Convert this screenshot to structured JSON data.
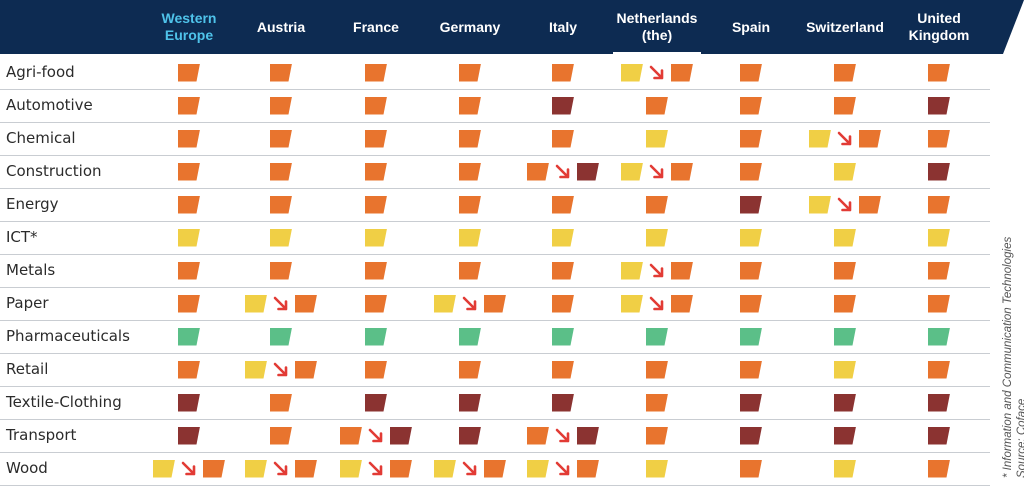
{
  "colors": {
    "header_bg": "#0d2b52",
    "highlight_text": "#4fc3ea",
    "low": "#5bbf88",
    "medium": "#f0cf45",
    "high": "#e8742e",
    "very_high": "#8b3331",
    "downgrade_arrow": "#e23b35"
  },
  "columns": [
    {
      "label": "Western\nEurope"
    },
    {
      "label": "Austria"
    },
    {
      "label": "France"
    },
    {
      "label": "Germany"
    },
    {
      "label": "Italy"
    },
    {
      "label": "Netherlands\n(the)"
    },
    {
      "label": "Spain"
    },
    {
      "label": "Switzerland"
    },
    {
      "label": "United\nKingdom"
    }
  ],
  "rows": [
    {
      "sector": "Agri-food",
      "cells": [
        [
          "high"
        ],
        [
          "high"
        ],
        [
          "high"
        ],
        [
          "high"
        ],
        [
          "high"
        ],
        [
          "medium",
          "high"
        ],
        [
          "high"
        ],
        [
          "high"
        ],
        [
          "high"
        ]
      ]
    },
    {
      "sector": "Automotive",
      "cells": [
        [
          "high"
        ],
        [
          "high"
        ],
        [
          "high"
        ],
        [
          "high"
        ],
        [
          "very_high"
        ],
        [
          "high"
        ],
        [
          "high"
        ],
        [
          "high"
        ],
        [
          "very_high"
        ]
      ]
    },
    {
      "sector": "Chemical",
      "cells": [
        [
          "high"
        ],
        [
          "high"
        ],
        [
          "high"
        ],
        [
          "high"
        ],
        [
          "high"
        ],
        [
          "medium"
        ],
        [
          "high"
        ],
        [
          "medium",
          "high"
        ],
        [
          "high"
        ]
      ]
    },
    {
      "sector": "Construction",
      "cells": [
        [
          "high"
        ],
        [
          "high"
        ],
        [
          "high"
        ],
        [
          "high"
        ],
        [
          "high",
          "very_high"
        ],
        [
          "medium",
          "high"
        ],
        [
          "high"
        ],
        [
          "medium"
        ],
        [
          "very_high"
        ]
      ]
    },
    {
      "sector": "Energy",
      "cells": [
        [
          "high"
        ],
        [
          "high"
        ],
        [
          "high"
        ],
        [
          "high"
        ],
        [
          "high"
        ],
        [
          "high"
        ],
        [
          "very_high"
        ],
        [
          "medium",
          "high"
        ],
        [
          "high"
        ]
      ]
    },
    {
      "sector": "ICT*",
      "cells": [
        [
          "medium"
        ],
        [
          "medium"
        ],
        [
          "medium"
        ],
        [
          "medium"
        ],
        [
          "medium"
        ],
        [
          "medium"
        ],
        [
          "medium"
        ],
        [
          "medium"
        ],
        [
          "medium"
        ]
      ]
    },
    {
      "sector": "Metals",
      "cells": [
        [
          "high"
        ],
        [
          "high"
        ],
        [
          "high"
        ],
        [
          "high"
        ],
        [
          "high"
        ],
        [
          "medium",
          "high"
        ],
        [
          "high"
        ],
        [
          "high"
        ],
        [
          "high"
        ]
      ]
    },
    {
      "sector": "Paper",
      "cells": [
        [
          "high"
        ],
        [
          "medium",
          "high"
        ],
        [
          "high"
        ],
        [
          "medium",
          "high"
        ],
        [
          "high"
        ],
        [
          "medium",
          "high"
        ],
        [
          "high"
        ],
        [
          "high"
        ],
        [
          "high"
        ]
      ]
    },
    {
      "sector": "Pharmaceuticals",
      "cells": [
        [
          "low"
        ],
        [
          "low"
        ],
        [
          "low"
        ],
        [
          "low"
        ],
        [
          "low"
        ],
        [
          "low"
        ],
        [
          "low"
        ],
        [
          "low"
        ],
        [
          "low"
        ]
      ]
    },
    {
      "sector": "Retail",
      "cells": [
        [
          "high"
        ],
        [
          "medium",
          "high"
        ],
        [
          "high"
        ],
        [
          "high"
        ],
        [
          "high"
        ],
        [
          "high"
        ],
        [
          "high"
        ],
        [
          "medium"
        ],
        [
          "high"
        ]
      ]
    },
    {
      "sector": "Textile-Clothing",
      "cells": [
        [
          "very_high"
        ],
        [
          "high"
        ],
        [
          "very_high"
        ],
        [
          "very_high"
        ],
        [
          "very_high"
        ],
        [
          "high"
        ],
        [
          "very_high"
        ],
        [
          "very_high"
        ],
        [
          "very_high"
        ]
      ]
    },
    {
      "sector": "Transport",
      "cells": [
        [
          "very_high"
        ],
        [
          "high"
        ],
        [
          "high",
          "very_high"
        ],
        [
          "very_high"
        ],
        [
          "high",
          "very_high"
        ],
        [
          "high"
        ],
        [
          "very_high"
        ],
        [
          "very_high"
        ],
        [
          "very_high"
        ]
      ]
    },
    {
      "sector": "Wood",
      "cells": [
        [
          "medium",
          "high"
        ],
        [
          "medium",
          "high"
        ],
        [
          "medium",
          "high"
        ],
        [
          "medium",
          "high"
        ],
        [
          "medium",
          "high"
        ],
        [
          "medium"
        ],
        [
          "high"
        ],
        [
          "medium"
        ],
        [
          "high"
        ]
      ]
    }
  ],
  "footnotes": {
    "note": "* Information and Communication Technologies",
    "source": "Source: Coface"
  }
}
